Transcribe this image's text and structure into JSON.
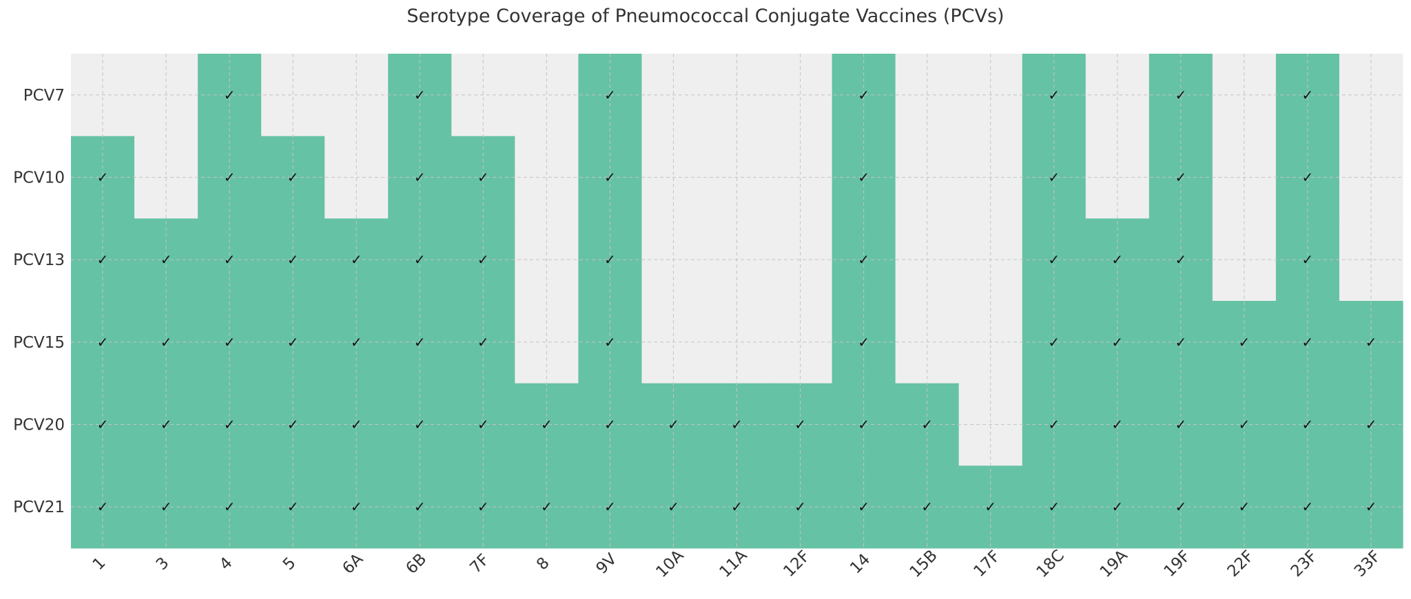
{
  "chart_data": {
    "type": "heatmap",
    "title": "Serotype Coverage of Pneumococcal Conjugate Vaccines (PCVs)",
    "xlabel": "",
    "ylabel": "",
    "x_categories": [
      "1",
      "3",
      "4",
      "5",
      "6A",
      "6B",
      "7F",
      "8",
      "9V",
      "10A",
      "11A",
      "12F",
      "14",
      "15B",
      "17F",
      "18C",
      "19A",
      "19F",
      "22F",
      "23F",
      "33F"
    ],
    "y_categories": [
      "PCV7",
      "PCV10",
      "PCV13",
      "PCV15",
      "PCV20",
      "PCV21"
    ],
    "included_mark": "✓",
    "coverage": [
      [
        0,
        0,
        1,
        0,
        0,
        1,
        0,
        0,
        1,
        0,
        0,
        0,
        1,
        0,
        0,
        1,
        0,
        1,
        0,
        1,
        0
      ],
      [
        1,
        0,
        1,
        1,
        0,
        1,
        1,
        0,
        1,
        0,
        0,
        0,
        1,
        0,
        0,
        1,
        0,
        1,
        0,
        1,
        0
      ],
      [
        1,
        1,
        1,
        1,
        1,
        1,
        1,
        0,
        1,
        0,
        0,
        0,
        1,
        0,
        0,
        1,
        1,
        1,
        0,
        1,
        0
      ],
      [
        1,
        1,
        1,
        1,
        1,
        1,
        1,
        0,
        1,
        0,
        0,
        0,
        1,
        0,
        0,
        1,
        1,
        1,
        1,
        1,
        1
      ],
      [
        1,
        1,
        1,
        1,
        1,
        1,
        1,
        1,
        1,
        1,
        1,
        1,
        1,
        1,
        0,
        1,
        1,
        1,
        1,
        1,
        1
      ],
      [
        1,
        1,
        1,
        1,
        1,
        1,
        1,
        1,
        1,
        1,
        1,
        1,
        1,
        1,
        1,
        1,
        1,
        1,
        1,
        1,
        1
      ]
    ],
    "colors": {
      "included": "#66c2a5",
      "not_included": "#efefef",
      "grid": "#c4c4c4",
      "text": "#333333"
    },
    "grid": true,
    "legend": "none"
  }
}
